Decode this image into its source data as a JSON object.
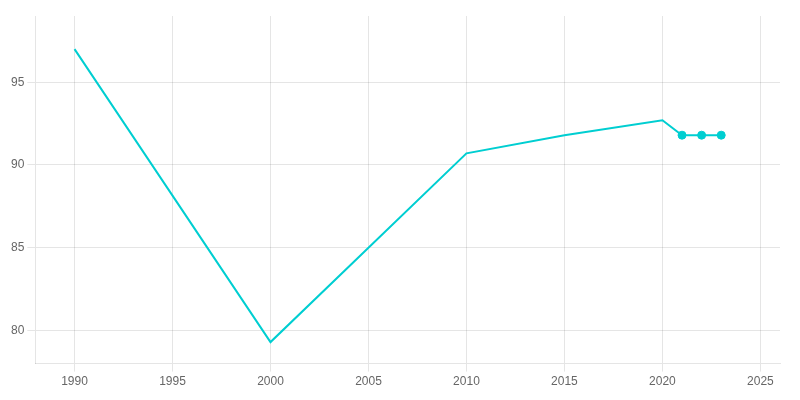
{
  "chart_data": {
    "type": "line",
    "x": [
      1990,
      2000,
      2010,
      2015,
      2020,
      2021,
      2022,
      2023
    ],
    "series": [
      {
        "values": [
          97,
          79.3,
          90.7,
          91.8,
          92.7,
          91.8,
          91.8,
          91.8
        ],
        "color": "#00CED1",
        "line_style": "solid",
        "marker": "none"
      },
      {
        "x": [
          2021,
          2022,
          2023
        ],
        "values": [
          91.8,
          91.8,
          91.8
        ],
        "color": "#00CED1",
        "line_style": "none",
        "marker": "circle"
      }
    ],
    "xlim": [
      1988,
      2026
    ],
    "ylim": [
      78,
      99
    ],
    "xticks": [
      1990,
      1995,
      2000,
      2005,
      2010,
      2015,
      2020,
      2025
    ],
    "yticks": [
      80,
      85,
      90,
      95
    ],
    "grid": true
  }
}
